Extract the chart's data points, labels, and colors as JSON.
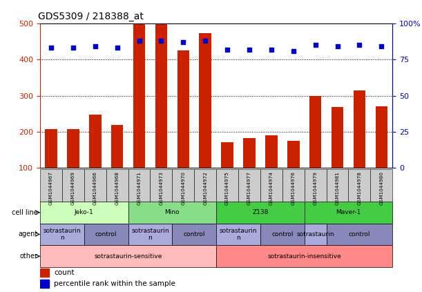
{
  "title": "GDS5309 / 218388_at",
  "samples": [
    "GSM1044967",
    "GSM1044969",
    "GSM1044966",
    "GSM1044968",
    "GSM1044971",
    "GSM1044973",
    "GSM1044970",
    "GSM1044972",
    "GSM1044975",
    "GSM1044977",
    "GSM1044974",
    "GSM1044976",
    "GSM1044979",
    "GSM1044981",
    "GSM1044978",
    "GSM1044980"
  ],
  "counts": [
    207,
    208,
    248,
    218,
    498,
    498,
    425,
    472,
    172,
    182,
    190,
    175,
    300,
    268,
    315,
    270
  ],
  "percentiles": [
    83,
    83,
    84,
    83,
    88,
    88,
    87,
    88,
    82,
    82,
    82,
    81,
    85,
    84,
    85,
    84
  ],
  "y_min": 100,
  "y_max": 500,
  "cell_lines": [
    {
      "label": "Jeko-1",
      "start": 0,
      "end": 3,
      "color": "#ccffbb"
    },
    {
      "label": "Mino",
      "start": 4,
      "end": 7,
      "color": "#88dd88"
    },
    {
      "label": "Z138",
      "start": 8,
      "end": 11,
      "color": "#44cc44"
    },
    {
      "label": "Maver-1",
      "start": 12,
      "end": 15,
      "color": "#44cc44"
    }
  ],
  "agents": [
    {
      "label": "sotrastaurin\nn",
      "start": 0,
      "end": 1,
      "color": "#aaaadd"
    },
    {
      "label": "control",
      "start": 2,
      "end": 3,
      "color": "#8888bb"
    },
    {
      "label": "sotrastaurin\nn",
      "start": 4,
      "end": 5,
      "color": "#aaaadd"
    },
    {
      "label": "control",
      "start": 6,
      "end": 7,
      "color": "#8888bb"
    },
    {
      "label": "sotrastaurin\nn",
      "start": 8,
      "end": 9,
      "color": "#aaaadd"
    },
    {
      "label": "control",
      "start": 10,
      "end": 11,
      "color": "#8888bb"
    },
    {
      "label": "sotrastaurin",
      "start": 12,
      "end": 12,
      "color": "#aaaadd"
    },
    {
      "label": "control",
      "start": 13,
      "end": 15,
      "color": "#8888bb"
    }
  ],
  "others": [
    {
      "label": "sotrastaurin-sensitive",
      "start": 0,
      "end": 7,
      "color": "#ffbbbb"
    },
    {
      "label": "sotrastaurin-insensitive",
      "start": 8,
      "end": 15,
      "color": "#ff8888"
    }
  ],
  "row_labels": [
    "cell line",
    "agent",
    "other"
  ],
  "bar_color": "#cc2200",
  "dot_color": "#0000cc",
  "tick_color_left": "#cc2200",
  "tick_color_right": "#0000cc",
  "sample_box_color": "#cccccc",
  "yticks_left": [
    100,
    200,
    300,
    400,
    500
  ],
  "yticks_right": [
    0,
    25,
    50,
    75,
    100
  ],
  "ytick_right_labels": [
    "0",
    "25",
    "50",
    "75",
    "100%"
  ]
}
